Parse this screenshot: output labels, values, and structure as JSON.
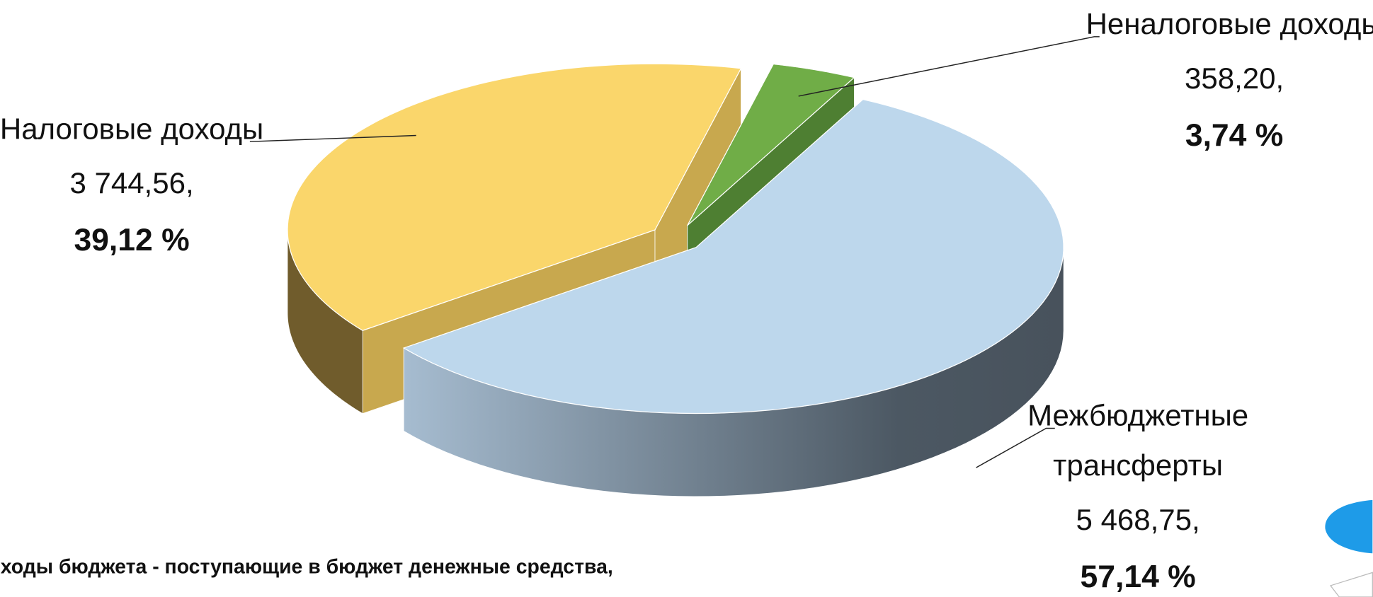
{
  "chart_data": {
    "type": "pie3d",
    "categories": [
      "Налоговые доходы",
      "Неналоговые доходы",
      "Межбюджетные трансферты"
    ],
    "values": [
      3744.56,
      358.2,
      5468.75
    ],
    "value_labels": [
      "3 744,56,",
      "358,20,",
      "5 468,75,"
    ],
    "shares": [
      39.12,
      3.74,
      57.14
    ],
    "share_labels": [
      "39,12 %",
      "3,74 %",
      "57,14 %"
    ],
    "colors": [
      "#fad66b",
      "#70ad47",
      "#bdd7ec"
    ],
    "footnote": "ходы бюджета -  поступающие в бюджет денежные средства,"
  }
}
